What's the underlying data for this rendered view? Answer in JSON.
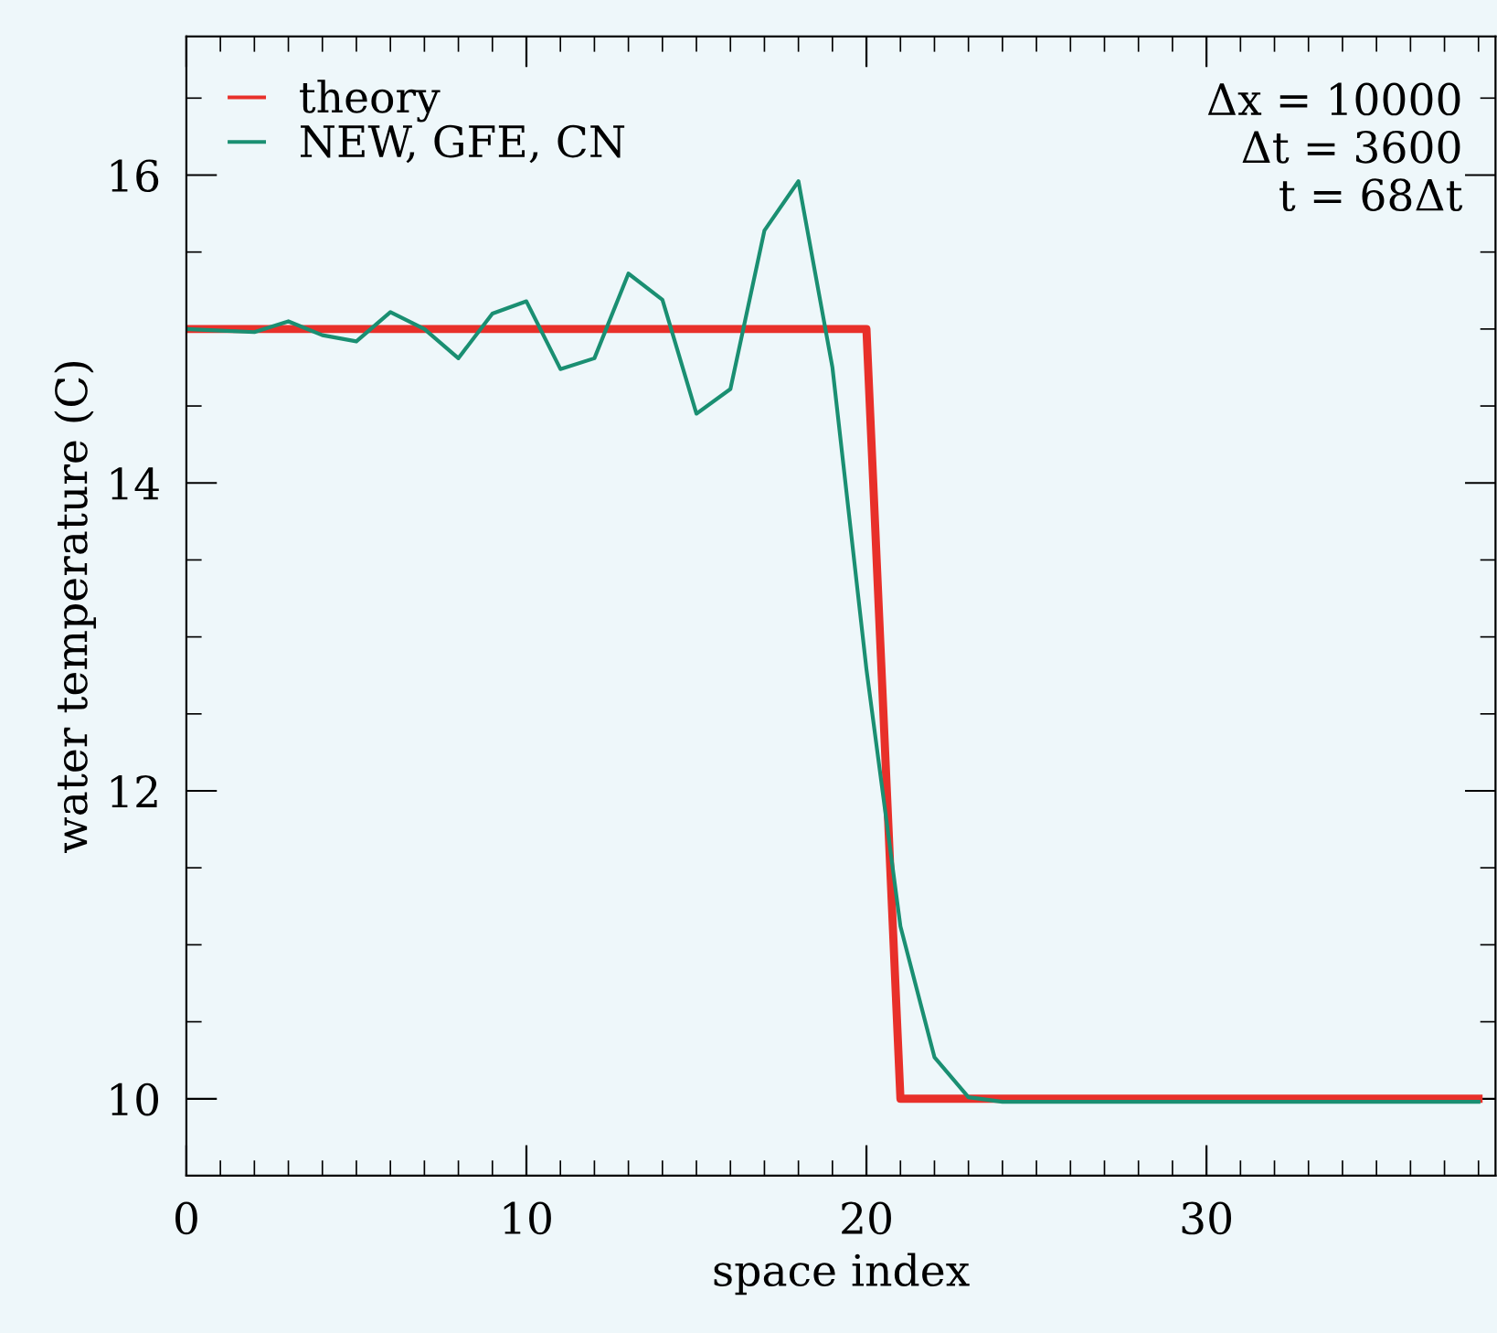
{
  "chart_data": {
    "type": "line",
    "xlabel": "space index",
    "ylabel": "water temperature (C)",
    "series": [
      {
        "name": "theory",
        "color": "#e8302a",
        "x": [
          0,
          20,
          21,
          38
        ],
        "values": [
          15.0,
          15.0,
          10.0,
          10.0
        ]
      },
      {
        "name": "NEW, GFE, CN",
        "color": "#1a8f72",
        "x": [
          0,
          1,
          2,
          3,
          4,
          5,
          6,
          7,
          8,
          9,
          10,
          11,
          12,
          13,
          14,
          15,
          16,
          17,
          18,
          19,
          20,
          21,
          22,
          23,
          24,
          25,
          26,
          27,
          28,
          29,
          30,
          31,
          32,
          33,
          34,
          35,
          36,
          37,
          38
        ],
        "values": [
          15.0,
          14.99,
          14.98,
          15.05,
          14.96,
          14.92,
          15.11,
          15.0,
          14.81,
          15.1,
          15.18,
          14.74,
          14.81,
          15.36,
          15.19,
          14.45,
          14.61,
          15.64,
          15.96,
          14.75,
          12.79,
          11.12,
          10.27,
          10.01,
          9.98,
          9.98,
          9.98,
          9.98,
          9.98,
          9.98,
          9.98,
          9.98,
          9.98,
          9.98,
          9.98,
          9.98,
          9.98,
          9.98,
          9.98
        ]
      }
    ],
    "xlim": [
      0,
      38.5
    ],
    "ylim": [
      9.5,
      16.9
    ],
    "xticks": [
      0,
      10,
      20,
      30
    ],
    "yticks": [
      10,
      12,
      14,
      16
    ],
    "legend": "top left",
    "grid": false,
    "marker": "none",
    "line_style": "solid",
    "annotations": [
      "Δx = 10000",
      "Δt = 3600",
      "t = 68Δt"
    ]
  }
}
